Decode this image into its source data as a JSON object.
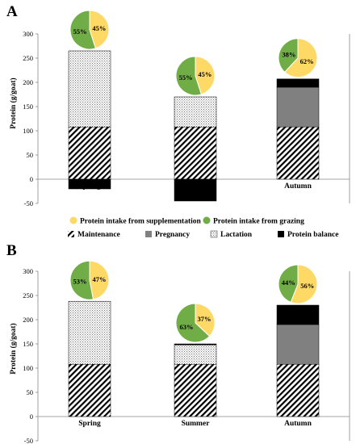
{
  "legend": {
    "supplementation": "Protein intake from supplementation",
    "grazing": "Protein intake from grazing",
    "maintenance": "Maintenance",
    "pregnancy": "Pregnancy",
    "lactation": "Lactation",
    "balance": "Protein balance"
  },
  "colors": {
    "supplementation": "#FFD966",
    "grazing": "#70AD47",
    "pregnancy": "#808080",
    "balance": "#000000"
  },
  "chart_data": [
    {
      "type": "bar",
      "panel": "A",
      "stacked": true,
      "ylabel": "Protein (g/goat)",
      "ylim": [
        -50,
        300
      ],
      "yticks": [
        -50,
        0,
        50,
        100,
        150,
        200,
        250,
        300
      ],
      "categories": [
        "Spring",
        "Summer",
        "Autumn"
      ],
      "series": [
        {
          "name": "Maintenance",
          "values": [
            108,
            108,
            108
          ]
        },
        {
          "name": "Pregnancy",
          "values": [
            0,
            0,
            82
          ]
        },
        {
          "name": "Lactation",
          "values": [
            157,
            62,
            0
          ]
        },
        {
          "name": "Protein balance",
          "values": [
            -20,
            -45,
            17
          ]
        }
      ],
      "pies": [
        {
          "category": "Spring",
          "supplementation": 45,
          "grazing": 55,
          "supp_label": "45%",
          "graze_label": "55%"
        },
        {
          "category": "Summer",
          "supplementation": 45,
          "grazing": 55,
          "supp_label": "45%",
          "graze_label": "55%"
        },
        {
          "category": "Autumn",
          "supplementation": 62,
          "grazing": 38,
          "supp_label": "62%",
          "graze_label": "38%"
        }
      ]
    },
    {
      "type": "bar",
      "panel": "B",
      "stacked": true,
      "ylabel": "Protein (g/goat)",
      "ylim": [
        -50,
        300
      ],
      "yticks": [
        -50,
        0,
        50,
        100,
        150,
        200,
        250,
        300
      ],
      "categories": [
        "Spring",
        "Summer",
        "Autumn"
      ],
      "series": [
        {
          "name": "Maintenance",
          "values": [
            108,
            108,
            108
          ]
        },
        {
          "name": "Pregnancy",
          "values": [
            0,
            0,
            82
          ]
        },
        {
          "name": "Lactation",
          "values": [
            130,
            40,
            0
          ]
        },
        {
          "name": "Protein balance",
          "values": [
            0,
            2,
            40
          ]
        }
      ],
      "pies": [
        {
          "category": "Spring",
          "supplementation": 47,
          "grazing": 53,
          "supp_label": "47%",
          "graze_label": "53%"
        },
        {
          "category": "Summer",
          "supplementation": 37,
          "grazing": 63,
          "supp_label": "37%",
          "graze_label": "63%"
        },
        {
          "category": "Autumn",
          "supplementation": 56,
          "grazing": 44,
          "supp_label": "56%",
          "graze_label": "44%"
        }
      ]
    }
  ]
}
